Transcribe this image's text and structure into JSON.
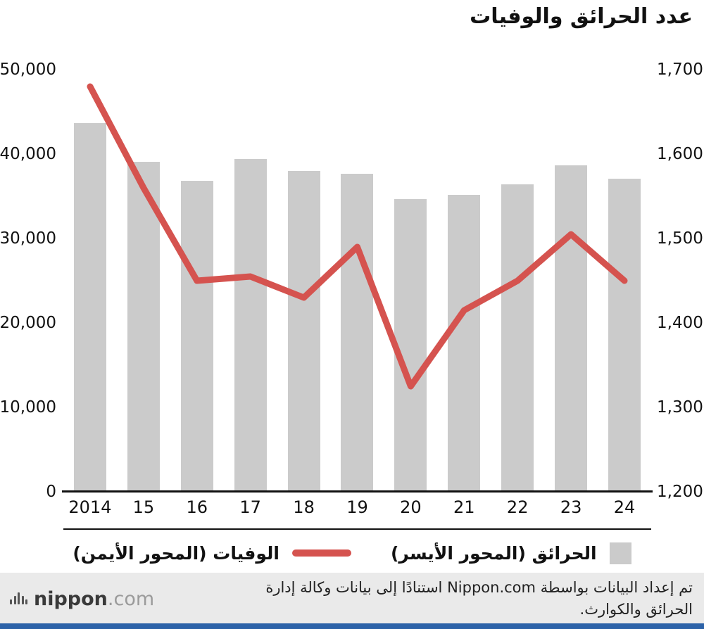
{
  "title": "عدد الحرائق والوفيات",
  "legend": {
    "deaths_label": "الوفيات (المحور الأيمن)",
    "fires_label": "الحرائق (المحور الأيسر)"
  },
  "source_line1": "تم إعداد البيانات بواسطة Nippon.com استنادًا إلى بيانات وكالة إدارة",
  "source_line2": "الحرائق والكوارث.",
  "footer": {
    "brand_bold": "nippon",
    "brand_light": ".com"
  },
  "icons": {
    "brand_waveform": "waveform-bars-logo"
  },
  "colors": {
    "bar": "#cbcbcb",
    "line": "#d5534f",
    "footer_bg": "#eaeaea",
    "accent_blue": "#2c62a8",
    "axis": "#111111"
  },
  "chart_data": {
    "type": "bar+line",
    "title": "عدد الحرائق والوفيات",
    "categories": [
      "2014",
      "15",
      "16",
      "17",
      "18",
      "19",
      "20",
      "21",
      "22",
      "23",
      "24"
    ],
    "series": [
      {
        "name": "الحرائق (المحور الأيسر)",
        "type": "bar",
        "axis": "left",
        "values": [
          43700,
          39100,
          36800,
          39400,
          38000,
          37700,
          34700,
          35200,
          36400,
          38700,
          37100
        ]
      },
      {
        "name": "الوفيات (المحور الأيمن)",
        "type": "line",
        "axis": "right",
        "values": [
          1680,
          1560,
          1450,
          1455,
          1430,
          1490,
          1325,
          1415,
          1450,
          1505,
          1450
        ]
      }
    ],
    "left_axis": {
      "min": 0,
      "max": 50000,
      "step": 10000,
      "ticks": [
        "0",
        "10,000",
        "20,000",
        "30,000",
        "40,000",
        "50,000"
      ]
    },
    "right_axis": {
      "min": 1200,
      "max": 1700,
      "step": 100,
      "ticks": [
        "1,200",
        "1,300",
        "1,400",
        "1,500",
        "1,600",
        "1,700"
      ]
    },
    "grid": false,
    "legend_position": "bottom"
  }
}
